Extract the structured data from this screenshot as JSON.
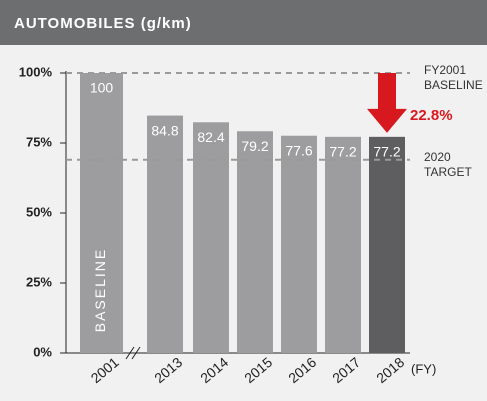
{
  "chart_data": {
    "type": "bar",
    "title": "AUTOMOBILES (g/km)",
    "categories": [
      "2001",
      "2013",
      "2014",
      "2015",
      "2016",
      "2017",
      "2018"
    ],
    "values": [
      100,
      84.8,
      82.4,
      79.2,
      77.6,
      77.2,
      77.2
    ],
    "colors": [
      "#9d9d9f",
      "#9d9d9f",
      "#9d9d9f",
      "#9d9d9f",
      "#9d9d9f",
      "#9d9d9f",
      "#5e5e60"
    ],
    "ylim": [
      0,
      100
    ],
    "yticks": [
      {
        "value": 0,
        "label": "0%"
      },
      {
        "value": 25,
        "label": "25%"
      },
      {
        "value": 50,
        "label": "50%"
      },
      {
        "value": 75,
        "label": "75%"
      },
      {
        "value": 100,
        "label": "100%"
      }
    ],
    "baseline_label": "BASELINE",
    "reduction_label": "22.8%",
    "reference_lines": [
      {
        "value": 100,
        "label": [
          "FY2001",
          "BASELINE"
        ]
      },
      {
        "value": 69,
        "label": [
          "2020",
          "TARGET"
        ]
      }
    ],
    "x_unit": "(FY)"
  }
}
